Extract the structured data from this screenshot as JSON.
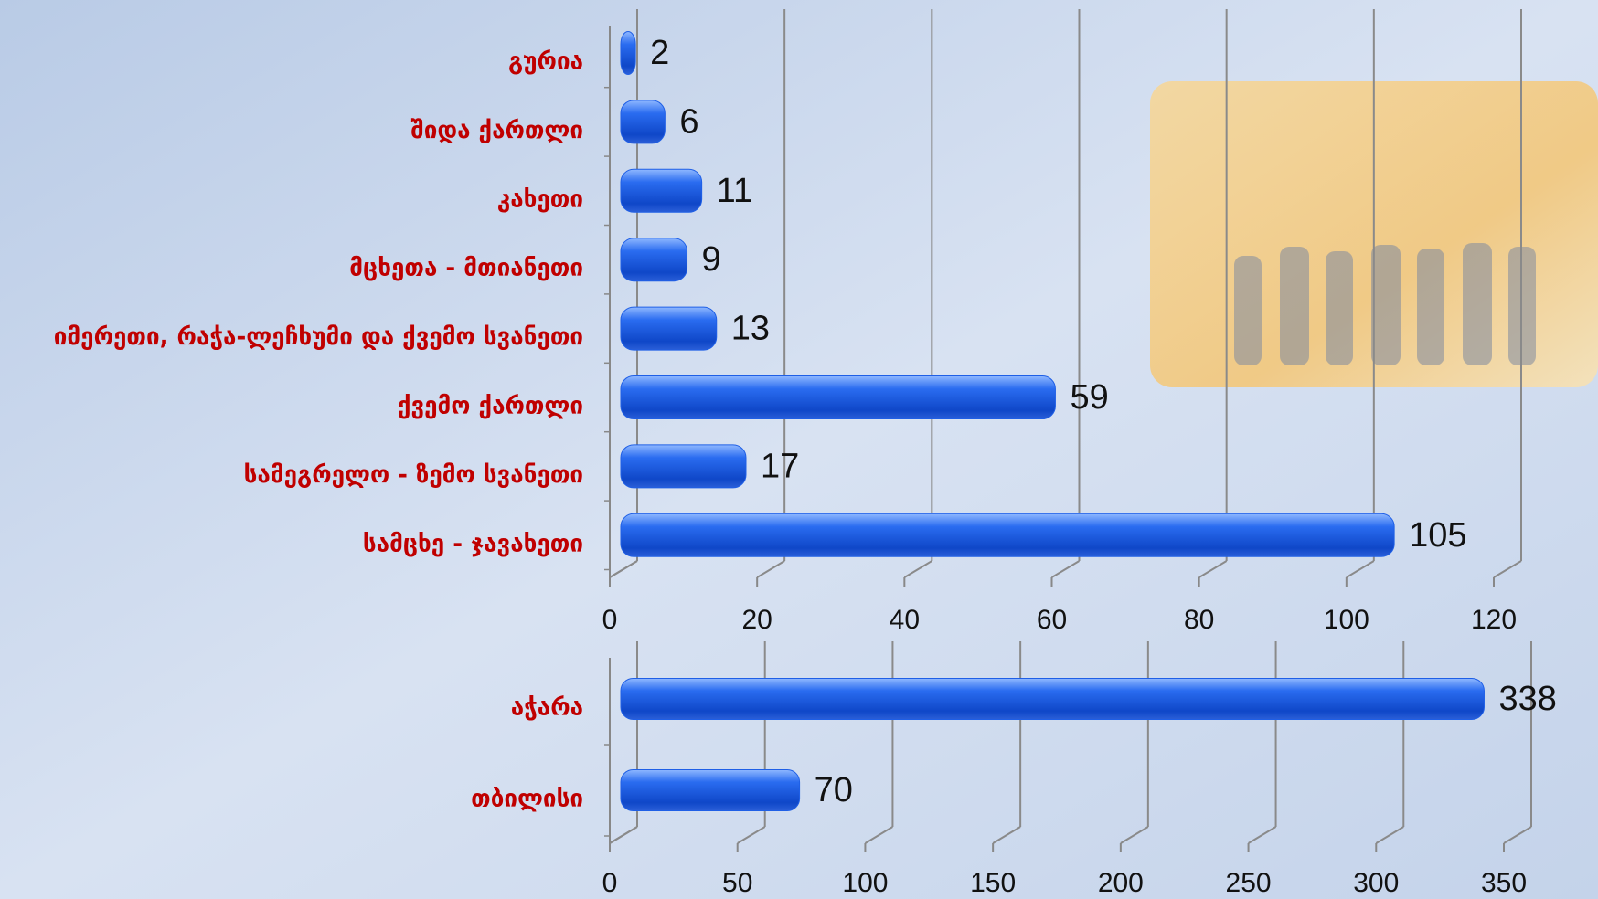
{
  "chart_data": [
    {
      "type": "bar",
      "orientation": "horizontal",
      "color": "#1f5fe6",
      "categories": [
        "გურია",
        "შიდა ქართლი",
        "კახეთი",
        "მცხეთა - მთიანეთი",
        "იმერეთი, რაჭა-ლეჩხუმი და ქვემო სვანეთი",
        "ქვემო ქართლი",
        "სამეგრელო - ზემო სვანეთი",
        "სამცხე - ჯავახეთი"
      ],
      "values": [
        2,
        6,
        11,
        9,
        13,
        59,
        17,
        105
      ],
      "xlim": [
        0,
        120
      ],
      "xticks": [
        0,
        20,
        40,
        60,
        80,
        100,
        120
      ],
      "grid": true
    },
    {
      "type": "bar",
      "orientation": "horizontal",
      "color": "#1f5fe6",
      "categories": [
        "აჭარა",
        "თბილისი"
      ],
      "values": [
        338,
        70
      ],
      "xlim": [
        0,
        350
      ],
      "xticks": [
        0,
        50,
        100,
        150,
        200,
        250,
        300,
        350
      ],
      "grid": true
    }
  ]
}
